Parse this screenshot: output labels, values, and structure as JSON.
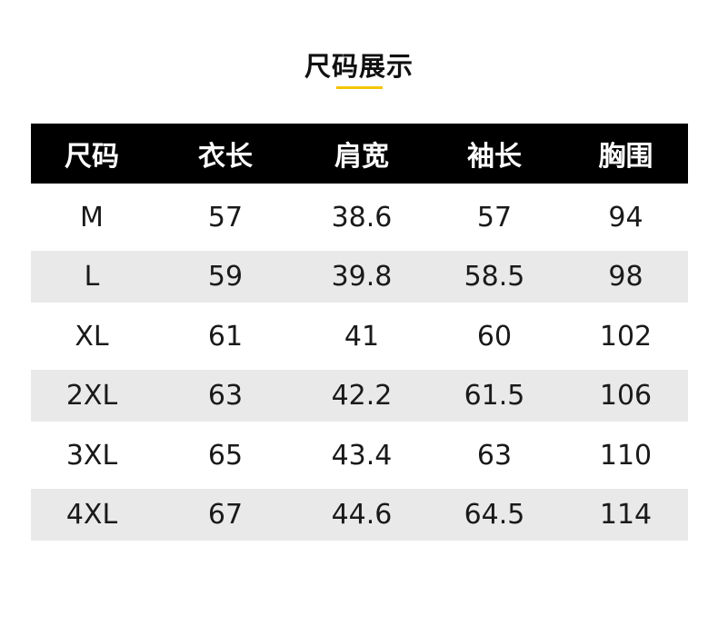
{
  "title": "尺码展示",
  "accent_color": "#f5c400",
  "table": {
    "headers": [
      "尺码",
      "衣长",
      "肩宽",
      "袖长",
      "胸围"
    ],
    "rows": [
      [
        "M",
        "57",
        "38.6",
        "57",
        "94"
      ],
      [
        "L",
        "59",
        "39.8",
        "58.5",
        "98"
      ],
      [
        "XL",
        "61",
        "41",
        "60",
        "102"
      ],
      [
        "2XL",
        "63",
        "42.2",
        "61.5",
        "106"
      ],
      [
        "3XL",
        "65",
        "43.4",
        "63",
        "110"
      ],
      [
        "4XL",
        "67",
        "44.6",
        "64.5",
        "114"
      ]
    ]
  }
}
